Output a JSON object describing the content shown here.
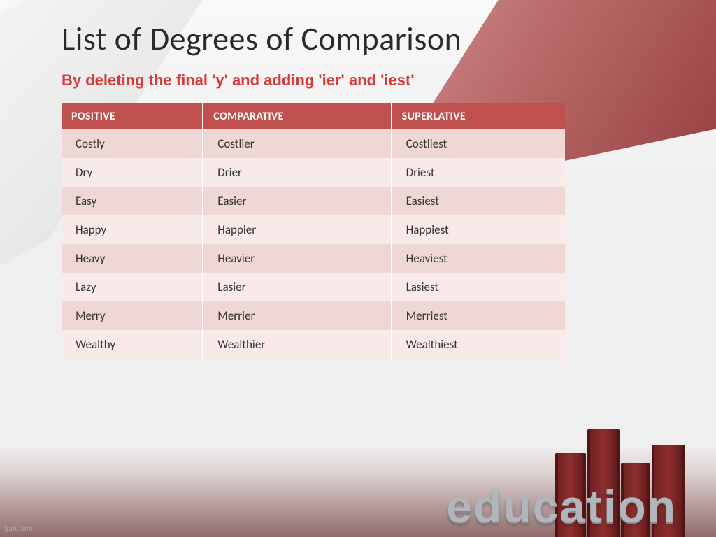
{
  "title": "List of Degrees of Comparison",
  "subtitle": "By deleting the final 'y' and adding 'ier' and 'iest'",
  "table": {
    "columns": [
      "POSITIVE",
      "COMPARATIVE",
      "SUPERLATIVE"
    ],
    "rows": [
      [
        "Costly",
        "Costlier",
        "Costliest"
      ],
      [
        "Dry",
        "Drier",
        "Driest"
      ],
      [
        "Easy",
        "Easier",
        "Easiest"
      ],
      [
        "Happy",
        "Happier",
        "Happiest"
      ],
      [
        "Heavy",
        "Heavier",
        "Heaviest"
      ],
      [
        "Lazy",
        "Lasier",
        "Lasiest"
      ],
      [
        "Merry",
        "Merrier",
        "Merriest"
      ],
      [
        "Wealthy",
        "Wealthier",
        "Wealthiest"
      ]
    ],
    "header_bg": "#c0504d",
    "header_fg": "#ffffff",
    "row_odd_bg": "#efd7d6",
    "row_even_bg": "#f7eae9",
    "font_size": 17
  },
  "decor": {
    "edu_text": "education",
    "edu_color": "#b0b6bb",
    "book_colors": [
      "#6b1f1f",
      "#8e2f2f",
      "#5a1717"
    ]
  },
  "colors": {
    "title": "#2a2a2a",
    "subtitle": "#d83a3a",
    "accent_triangle": "#8b3030",
    "background": "#efefef"
  },
  "watermark": "fppt.com"
}
